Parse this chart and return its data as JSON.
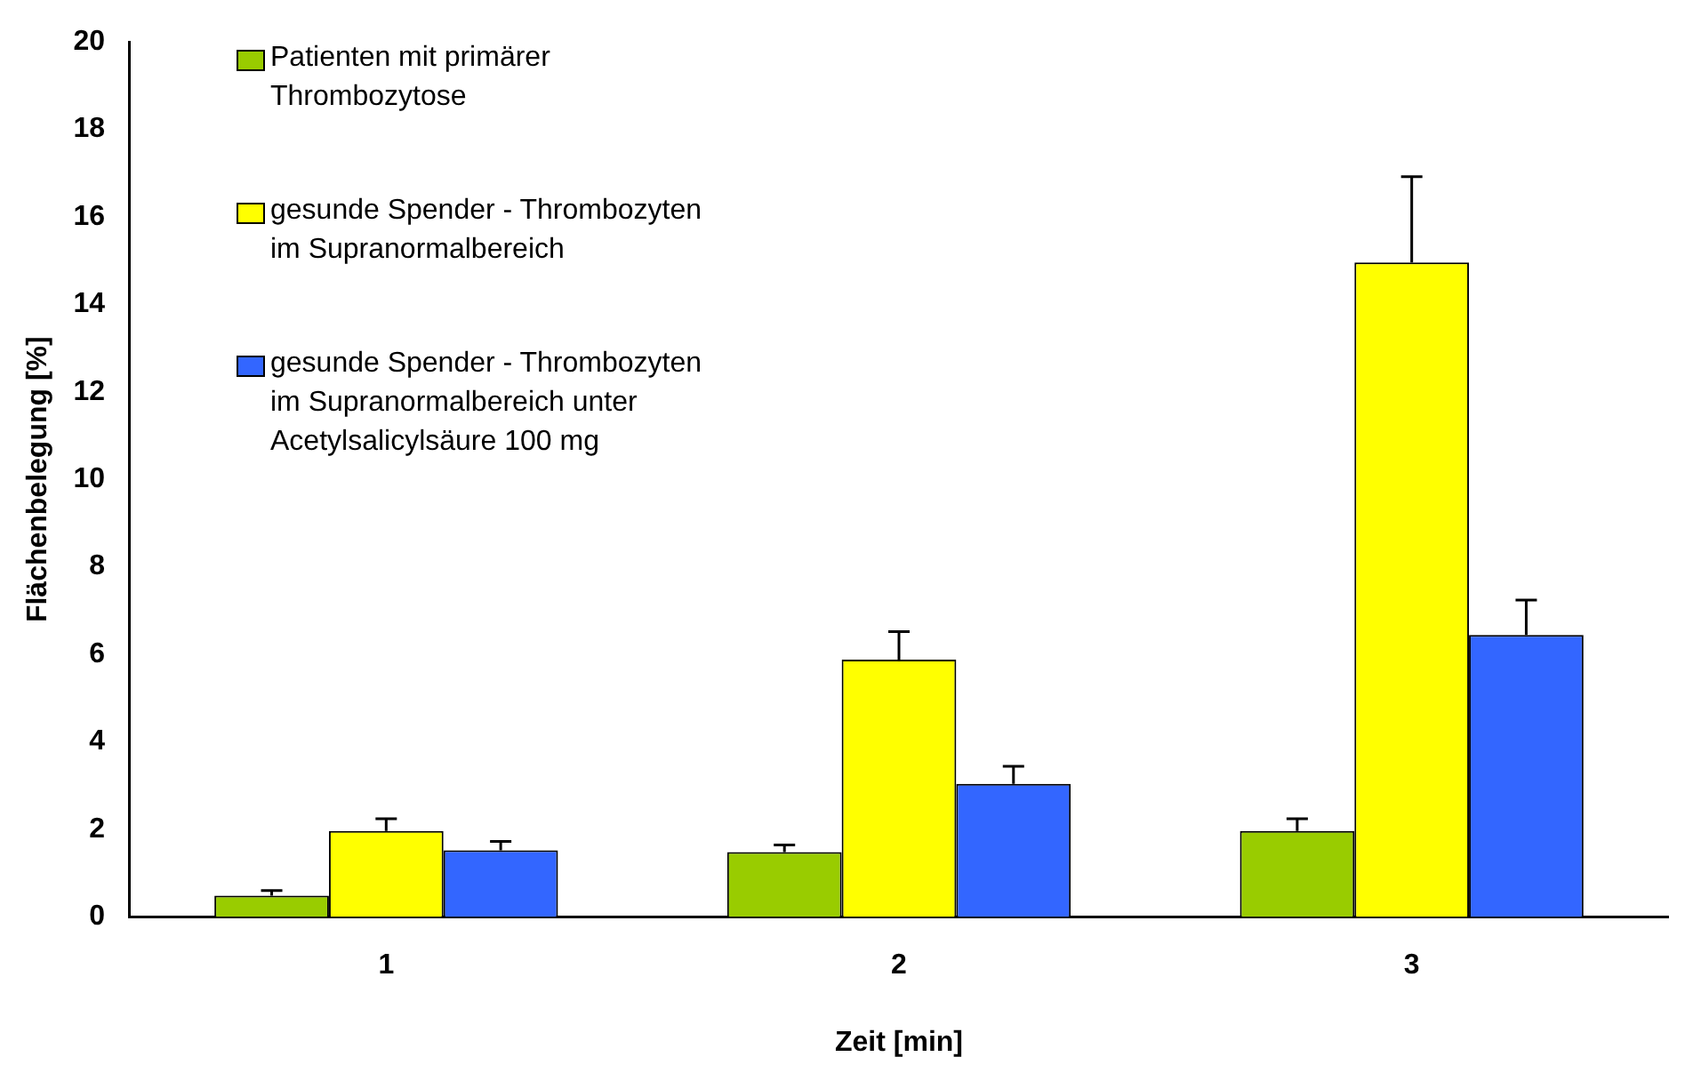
{
  "chart_data": {
    "type": "bar",
    "xlabel": "Zeit [min]",
    "ylabel": "Flächenbelegung [%]",
    "categories": [
      "1",
      "2",
      "3"
    ],
    "series": [
      {
        "name": "Patienten mit primärer Thrombozytose",
        "color": "#99cc00",
        "values": [
          0.48,
          1.48,
          1.96
        ],
        "errors": [
          [
            0.48,
            0.6
          ],
          [
            1.48,
            1.64
          ],
          [
            1.96,
            2.24
          ]
        ]
      },
      {
        "name": "gesunde Spender - Thrombozyten im Supranormalbereich",
        "color": "#ffff00",
        "values": [
          1.96,
          5.88,
          14.96
        ],
        "errors": [
          [
            1.96,
            2.24
          ],
          [
            5.88,
            6.52
          ],
          [
            14.96,
            16.92
          ]
        ]
      },
      {
        "name": "gesunde Spender - Thrombozyten im Supranormalbereich unter Acetylsalicylsäure 100 mg",
        "color": "#3366ff",
        "values": [
          1.52,
          3.04,
          6.44
        ],
        "errors": [
          [
            1.52,
            1.72
          ],
          [
            3.04,
            3.44
          ],
          [
            6.44,
            7.24
          ]
        ]
      }
    ],
    "ylim": [
      0,
      20
    ],
    "yticks": [
      0,
      2,
      4,
      6,
      8,
      10,
      12,
      14,
      16,
      18,
      20
    ],
    "grid": false,
    "legend": "top left"
  }
}
